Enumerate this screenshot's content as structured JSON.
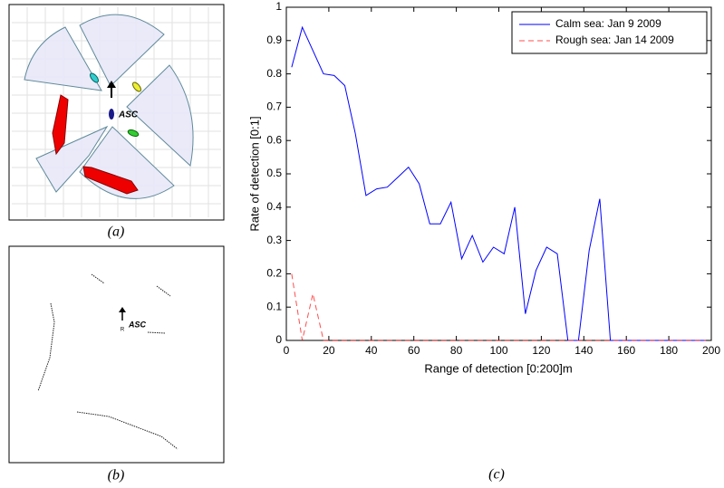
{
  "panel_a": {
    "caption": "(a)",
    "label": "ASC"
  },
  "panel_b": {
    "caption": "(b)",
    "label": "ASC",
    "marker": "R"
  },
  "panel_c": {
    "caption": "(c)"
  },
  "chart_data": {
    "type": "line",
    "ylabel": "Rate of detection [0:1]",
    "xlabel": "Range of detection [0:200]m",
    "x": [
      2.5,
      7.5,
      12.5,
      17.5,
      22.5,
      27.5,
      32.5,
      37.5,
      42.5,
      47.5,
      52.5,
      57.5,
      62.5,
      67.5,
      72.5,
      77.5,
      82.5,
      87.5,
      92.5,
      97.5,
      102.5,
      107.5,
      112.5,
      117.5,
      122.5,
      127.5,
      132.5,
      137.5,
      142.5,
      147.5,
      152.5,
      157.5,
      162.5,
      167.5,
      172.5,
      177.5,
      182.5,
      187.5,
      192.5,
      197.5
    ],
    "series": [
      {
        "name": "Calm sea: Jan 9 2009",
        "color": "#0000ff",
        "dash": "solid",
        "values": [
          0.82,
          0.94,
          0.87,
          0.8,
          0.795,
          0.765,
          0.62,
          0.435,
          0.455,
          0.46,
          0.49,
          0.52,
          0.47,
          0.35,
          0.35,
          0.415,
          0.245,
          0.315,
          0.235,
          0.28,
          0.26,
          0.4,
          0.08,
          0.21,
          0.28,
          0.26,
          0,
          0,
          0.27,
          0.425,
          0,
          0,
          0,
          0,
          0,
          0,
          0,
          0,
          0,
          0
        ]
      },
      {
        "name": "Rough sea: Jan 14 2009",
        "color": "#ff0000",
        "dash": "dashed",
        "values": [
          0.2,
          0,
          0.14,
          0,
          0,
          0,
          0,
          0,
          0,
          0,
          0,
          0,
          0,
          0,
          0,
          0,
          0,
          0,
          0,
          0,
          0,
          0,
          0,
          0,
          0,
          0,
          0,
          0,
          0,
          0,
          0,
          0,
          0,
          0,
          0,
          0,
          0,
          0,
          0,
          0
        ]
      }
    ],
    "xlim": [
      0,
      200
    ],
    "xticks": [
      0,
      20,
      40,
      60,
      80,
      100,
      120,
      140,
      160,
      180,
      200
    ],
    "ylim": [
      0,
      1
    ],
    "yticks": [
      0,
      0.1,
      0.2,
      0.3,
      0.4,
      0.5,
      0.6,
      0.7,
      0.8,
      0.9,
      1
    ],
    "grid": false,
    "legend": "top-right"
  }
}
